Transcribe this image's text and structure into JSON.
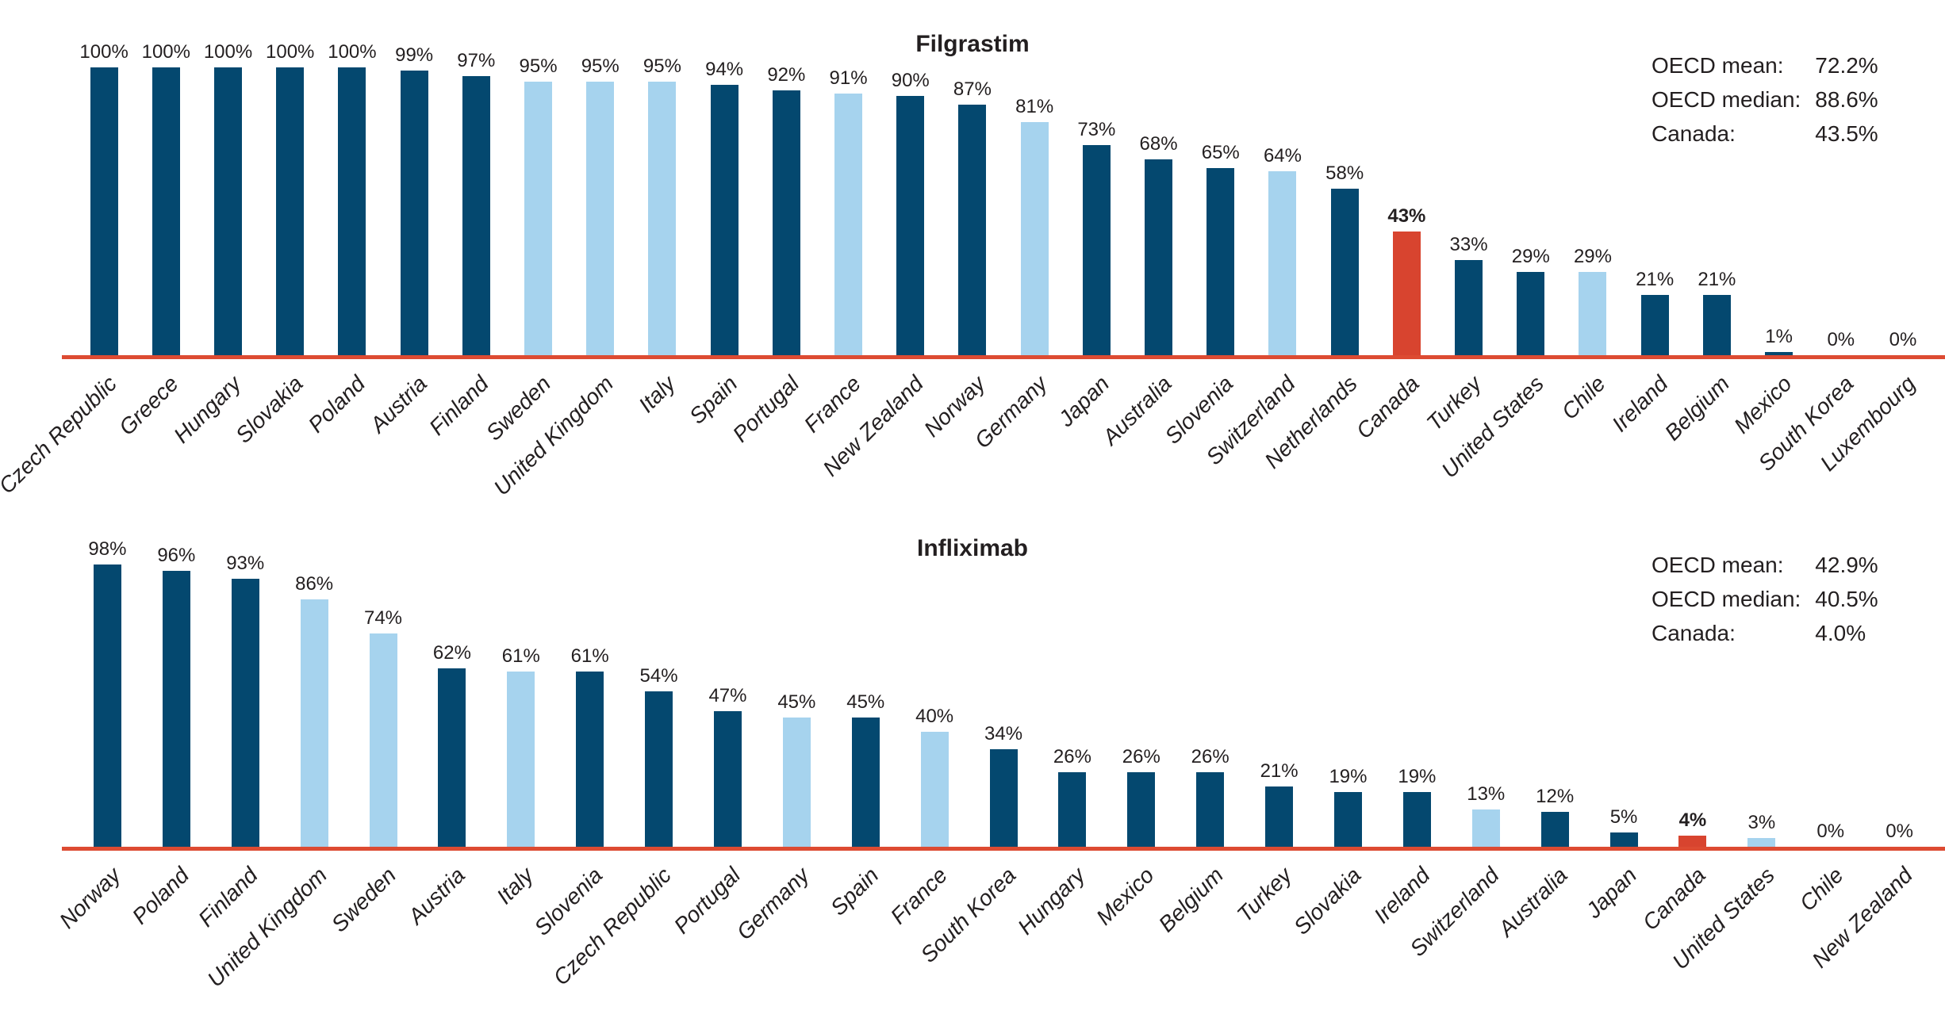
{
  "accent_colors": {
    "dark": "#04486f",
    "light": "#a6d3ee",
    "highlight": "#d8442f",
    "axis": "#dd4b32",
    "text": "#231f20"
  },
  "value_suffix": "%",
  "chart_data": [
    {
      "type": "bar",
      "title": "Filgrastim",
      "ylabel": "",
      "xlabel": "",
      "ylim": [
        0,
        100
      ],
      "grid": false,
      "legend_position": "none",
      "stats": {
        "mean_label": "OECD mean:",
        "mean_value": "72.2%",
        "median_label": "OECD median:",
        "median_value": "88.6%",
        "canada_label": "Canada:",
        "canada_value": "43.5%"
      },
      "categories": [
        "Czech Republic",
        "Greece",
        "Hungary",
        "Slovakia",
        "Poland",
        "Austria",
        "Finland",
        "Sweden",
        "United Kingdom",
        "Italy",
        "Spain",
        "Portugal",
        "France",
        "New Zealand",
        "Norway",
        "Germany",
        "Japan",
        "Australia",
        "Slovenia",
        "Switzerland",
        "Netherlands",
        "Canada",
        "Turkey",
        "United States",
        "Chile",
        "Ireland",
        "Belgium",
        "Mexico",
        "South Korea",
        "Luxembourg"
      ],
      "values": [
        100,
        100,
        100,
        100,
        100,
        99,
        97,
        95,
        95,
        95,
        94,
        92,
        91,
        90,
        87,
        81,
        73,
        68,
        65,
        64,
        58,
        43,
        33,
        29,
        29,
        21,
        21,
        1,
        0,
        0
      ],
      "bar_styles": [
        "dark",
        "dark",
        "dark",
        "dark",
        "dark",
        "dark",
        "dark",
        "light",
        "light",
        "light",
        "dark",
        "dark",
        "light",
        "dark",
        "dark",
        "light",
        "dark",
        "dark",
        "dark",
        "light",
        "dark",
        "highlight",
        "dark",
        "dark",
        "light",
        "dark",
        "dark",
        "dark",
        "dark",
        "dark"
      ]
    },
    {
      "type": "bar",
      "title": "Infliximab",
      "ylabel": "",
      "xlabel": "",
      "ylim": [
        0,
        100
      ],
      "grid": false,
      "legend_position": "none",
      "stats": {
        "mean_label": "OECD mean:",
        "mean_value": "42.9%",
        "median_label": "OECD median:",
        "median_value": "40.5%",
        "canada_label": "Canada:",
        "canada_value": "4.0%"
      },
      "categories": [
        "Norway",
        "Poland",
        "Finland",
        "United Kingdom",
        "Sweden",
        "Austria",
        "Italy",
        "Slovenia",
        "Czech Republic",
        "Portugal",
        "Germany",
        "Spain",
        "France",
        "South Korea",
        "Hungary",
        "Mexico",
        "Belgium",
        "Turkey",
        "Slovakia",
        "Ireland",
        "Switzerland",
        "Australia",
        "Japan",
        "Canada",
        "United States",
        "Chile",
        "New Zealand"
      ],
      "values": [
        98,
        96,
        93,
        86,
        74,
        62,
        61,
        61,
        54,
        47,
        45,
        45,
        40,
        34,
        26,
        26,
        26,
        21,
        19,
        19,
        13,
        12,
        5,
        4,
        3,
        0,
        0
      ],
      "bar_styles": [
        "dark",
        "dark",
        "dark",
        "light",
        "light",
        "dark",
        "light",
        "dark",
        "dark",
        "dark",
        "light",
        "dark",
        "light",
        "dark",
        "dark",
        "dark",
        "dark",
        "dark",
        "dark",
        "dark",
        "light",
        "dark",
        "dark",
        "highlight",
        "light",
        "dark",
        "dark"
      ]
    }
  ]
}
